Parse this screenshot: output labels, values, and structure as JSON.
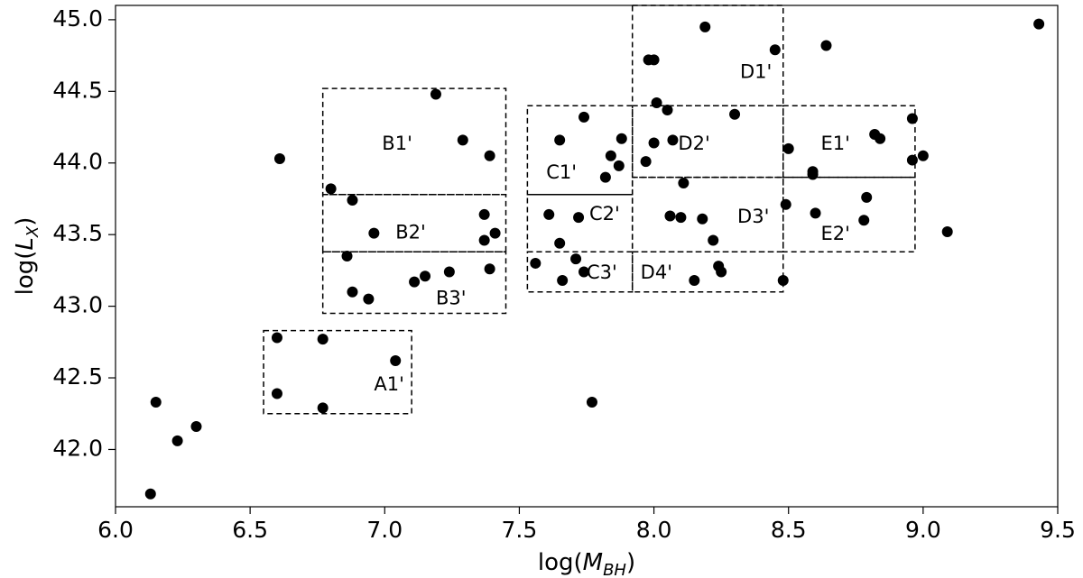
{
  "chart_data": {
    "type": "scatter",
    "title": "",
    "xlabel": "log(M_BH)",
    "ylabel": "log(L_X)",
    "xlim": [
      6.0,
      9.5
    ],
    "ylim": [
      41.6,
      45.1
    ],
    "grid": false,
    "xticks": [
      "6.0",
      "6.5",
      "7.0",
      "7.5",
      "8.0",
      "8.5",
      "9.0",
      "9.5"
    ],
    "yticks": [
      "42.0",
      "42.5",
      "43.0",
      "43.5",
      "44.0",
      "44.5",
      "45.0"
    ],
    "points": [
      [
        6.13,
        41.69
      ],
      [
        6.15,
        42.33
      ],
      [
        6.23,
        42.06
      ],
      [
        6.3,
        42.16
      ],
      [
        6.6,
        42.78
      ],
      [
        6.6,
        42.39
      ],
      [
        6.61,
        44.03
      ],
      [
        6.77,
        42.77
      ],
      [
        6.77,
        42.29
      ],
      [
        7.04,
        42.62
      ],
      [
        6.8,
        43.82
      ],
      [
        6.86,
        43.35
      ],
      [
        6.88,
        43.74
      ],
      [
        6.88,
        43.1
      ],
      [
        6.94,
        43.05
      ],
      [
        6.96,
        43.51
      ],
      [
        7.11,
        43.17
      ],
      [
        7.15,
        43.21
      ],
      [
        7.19,
        44.48
      ],
      [
        7.24,
        43.24
      ],
      [
        7.29,
        44.16
      ],
      [
        7.37,
        43.64
      ],
      [
        7.37,
        43.46
      ],
      [
        7.39,
        44.05
      ],
      [
        7.39,
        43.26
      ],
      [
        7.41,
        43.51
      ],
      [
        7.56,
        43.3
      ],
      [
        7.61,
        43.64
      ],
      [
        7.65,
        44.16
      ],
      [
        7.65,
        43.44
      ],
      [
        7.66,
        43.18
      ],
      [
        7.71,
        43.33
      ],
      [
        7.72,
        43.62
      ],
      [
        7.74,
        44.32
      ],
      [
        7.74,
        43.24
      ],
      [
        7.77,
        42.33
      ],
      [
        7.82,
        43.9
      ],
      [
        7.84,
        44.05
      ],
      [
        7.87,
        43.98
      ],
      [
        7.88,
        44.17
      ],
      [
        7.97,
        44.01
      ],
      [
        7.98,
        44.72
      ],
      [
        8.0,
        44.72
      ],
      [
        8.0,
        44.14
      ],
      [
        8.01,
        44.42
      ],
      [
        8.05,
        44.37
      ],
      [
        8.06,
        43.63
      ],
      [
        8.07,
        44.16
      ],
      [
        8.1,
        43.62
      ],
      [
        8.11,
        43.86
      ],
      [
        8.15,
        43.18
      ],
      [
        8.18,
        43.61
      ],
      [
        8.19,
        44.95
      ],
      [
        8.22,
        43.46
      ],
      [
        8.24,
        43.28
      ],
      [
        8.25,
        43.24
      ],
      [
        8.3,
        44.34
      ],
      [
        8.45,
        44.79
      ],
      [
        8.48,
        43.18
      ],
      [
        8.49,
        43.71
      ],
      [
        8.5,
        44.1
      ],
      [
        8.59,
        43.94
      ],
      [
        8.59,
        43.92
      ],
      [
        8.6,
        43.65
      ],
      [
        8.64,
        44.82
      ],
      [
        8.78,
        43.6
      ],
      [
        8.79,
        43.76
      ],
      [
        8.82,
        44.2
      ],
      [
        8.84,
        44.17
      ],
      [
        8.96,
        44.31
      ],
      [
        8.96,
        44.02
      ],
      [
        9.0,
        44.05
      ],
      [
        9.09,
        43.52
      ],
      [
        9.43,
        44.97
      ]
    ],
    "regions": [
      {
        "label": "A1'",
        "x0": 6.55,
        "x1": 7.1,
        "y0": 42.25,
        "y1": 42.83,
        "lx": 6.96,
        "ly": 42.45
      },
      {
        "label": "B1'",
        "x0": 6.77,
        "x1": 7.45,
        "y0": 43.78,
        "y1": 44.52,
        "lx": 6.99,
        "ly": 44.13
      },
      {
        "label": "B2'",
        "x0": 6.77,
        "x1": 7.45,
        "y0": 43.38,
        "y1": 43.78,
        "lx": 7.04,
        "ly": 43.51
      },
      {
        "label": "B3'",
        "x0": 6.77,
        "x1": 7.45,
        "y0": 42.95,
        "y1": 43.38,
        "lx": 7.19,
        "ly": 43.05
      },
      {
        "label": "C1'",
        "x0": 7.53,
        "x1": 7.92,
        "y0": 43.78,
        "y1": 44.4,
        "lx": 7.6,
        "ly": 43.93
      },
      {
        "label": "C2'",
        "x0": 7.53,
        "x1": 7.92,
        "y0": 43.38,
        "y1": 43.78,
        "lx": 7.76,
        "ly": 43.64
      },
      {
        "label": "C3'",
        "x0": 7.53,
        "x1": 7.92,
        "y0": 43.1,
        "y1": 43.38,
        "lx": 7.75,
        "ly": 43.23
      },
      {
        "label": "D1'",
        "x0": 7.92,
        "x1": 8.48,
        "y0": 44.4,
        "y1": 45.1,
        "lx": 8.32,
        "ly": 44.63
      },
      {
        "label": "D2'",
        "x0": 7.92,
        "x1": 8.48,
        "y0": 43.9,
        "y1": 44.4,
        "lx": 8.09,
        "ly": 44.13
      },
      {
        "label": "D3'",
        "x0": 7.92,
        "x1": 8.48,
        "y0": 43.38,
        "y1": 43.9,
        "lx": 8.31,
        "ly": 43.62
      },
      {
        "label": "D4'",
        "x0": 7.92,
        "x1": 8.48,
        "y0": 43.1,
        "y1": 43.38,
        "lx": 7.95,
        "ly": 43.23
      },
      {
        "label": "E1'",
        "x0": 8.48,
        "x1": 8.97,
        "y0": 43.9,
        "y1": 44.4,
        "lx": 8.62,
        "ly": 44.13
      },
      {
        "label": "E2'",
        "x0": 8.48,
        "x1": 8.97,
        "y0": 43.38,
        "y1": 43.9,
        "lx": 8.62,
        "ly": 43.5
      }
    ]
  }
}
